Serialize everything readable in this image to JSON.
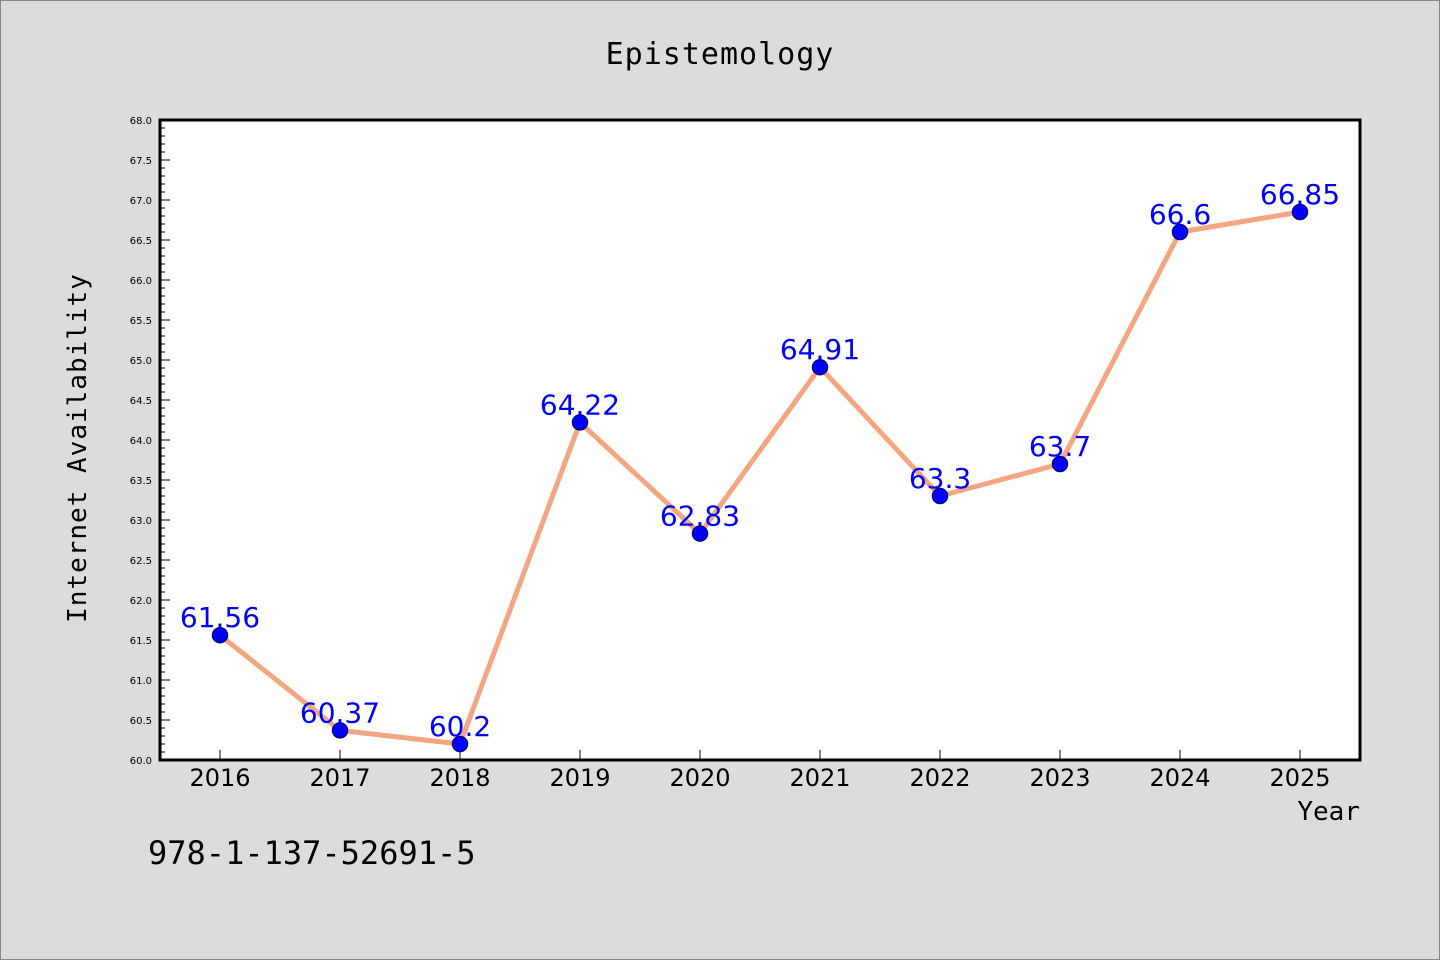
{
  "chart_data": {
    "type": "line",
    "title": "Epistemology",
    "xlabel": "Year",
    "ylabel": "Internet Availability",
    "categories": [
      "2016",
      "2017",
      "2018",
      "2019",
      "2020",
      "2021",
      "2022",
      "2023",
      "2024",
      "2025"
    ],
    "series": [
      {
        "values": [
          61.56,
          60.37,
          60.2,
          64.22,
          62.83,
          64.91,
          63.3,
          63.7,
          66.6,
          66.85
        ]
      }
    ],
    "data_labels": [
      "61.56",
      "60.37",
      "60.2",
      "64.22",
      "62.83",
      "64.91",
      "63.3",
      "63.7",
      "66.6",
      "66.85"
    ],
    "ylim": [
      60.0,
      68.0
    ],
    "yticks": [
      "60.0",
      "60.5",
      "61.0",
      "61.5",
      "62.0",
      "62.5",
      "63.0",
      "63.5",
      "64.0",
      "64.5",
      "65.0",
      "65.5",
      "66.0",
      "66.5",
      "67.0",
      "67.5",
      "68.0"
    ],
    "grid": false,
    "colors": {
      "line": "#f4a582",
      "marker": "#0000ff",
      "marker_edge": "#00008b",
      "label": "#0000ff",
      "background": "#dcdcdc",
      "plot_background": "#ffffff"
    }
  },
  "footer": {
    "isbn": "978-1-137-52691-5"
  }
}
